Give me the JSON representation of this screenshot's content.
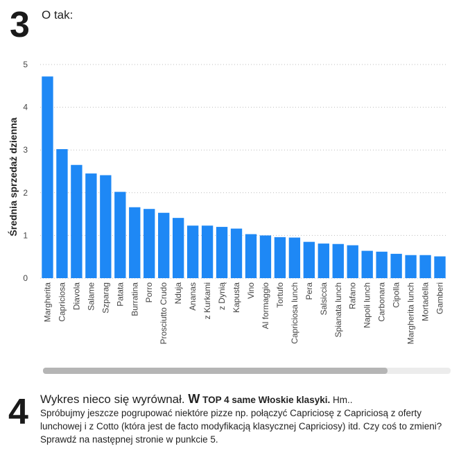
{
  "section3": {
    "number": "3",
    "heading": "O tak:"
  },
  "chart_data": {
    "type": "bar",
    "title": "",
    "xlabel": "",
    "ylabel": "Średnia sprzedaż dzienna",
    "ylim": [
      0,
      5
    ],
    "yticks": [
      0,
      1,
      2,
      3,
      4,
      5
    ],
    "grid": true,
    "color": "#1e88f5",
    "categories": [
      "Margherita",
      "Capriciosa",
      "Diavola",
      "Salame",
      "Szparag",
      "Patata",
      "Burratina",
      "Porro",
      "Prosciutto Crudo",
      "Nduja",
      "Ananas",
      "z Kurkami",
      "z Dynią",
      "Kapusta",
      "Vino",
      "Al formaggio",
      "Tortufo",
      "Capriciosa lunch",
      "Pera",
      "Salsiccia",
      "Spianata lunch",
      "Rafano",
      "Napoli lunch",
      "Carbonara",
      "Cipolla",
      "Margherita lunch",
      "Mortadella",
      "Gamberi"
    ],
    "values": [
      4.72,
      3.02,
      2.65,
      2.45,
      2.41,
      2.02,
      1.66,
      1.62,
      1.53,
      1.41,
      1.23,
      1.23,
      1.2,
      1.16,
      1.03,
      1.0,
      0.96,
      0.95,
      0.85,
      0.81,
      0.8,
      0.77,
      0.64,
      0.62,
      0.57,
      0.54,
      0.54,
      0.51
    ]
  },
  "scrollbar": {
    "position": 0.0,
    "visible_fraction": 0.845
  },
  "section4": {
    "number": "4",
    "lead": "Wykres nieco się wyrównał. ",
    "w": "W",
    "bold": " TOP 4 same Włoskie klasyki.",
    "hm": " Hm..",
    "body": "Spróbujmy jeszcze pogrupować niektóre pizze np. połączyć Capriciosę z Capriciosą z oferty lunchowej i z Cotto (która jest de facto modyfikacją klasycznej Capriciosy) itd. Czy coś to zmieni? Sprawdź na następnej stronie w punkcie 5."
  }
}
